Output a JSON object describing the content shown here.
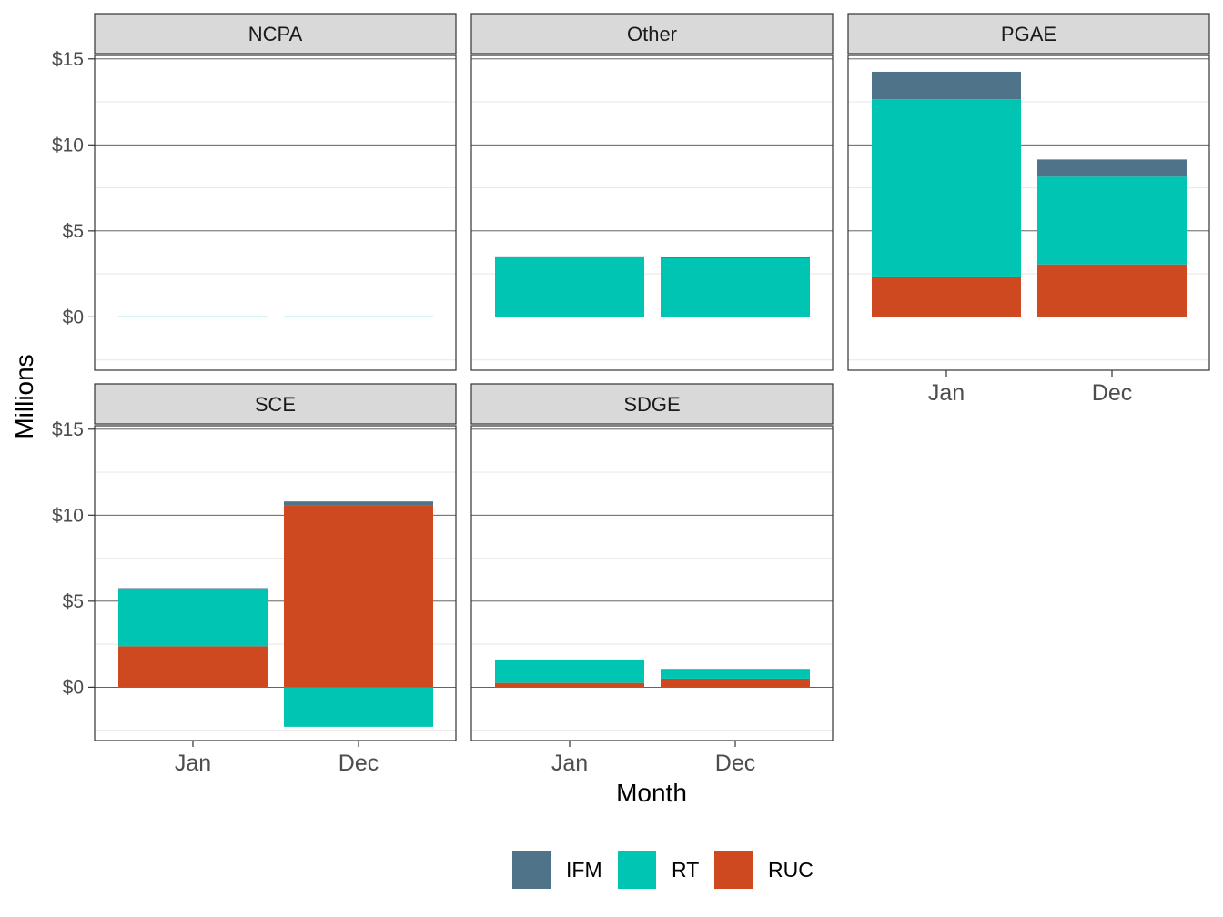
{
  "chart_data": {
    "type": "bar",
    "stacked": true,
    "xlabel": "Month",
    "ylabel": "Millions",
    "y_tick_values": [
      0,
      5,
      10,
      15
    ],
    "y_tick_labels": [
      "$0",
      "$5",
      "$10",
      "$15"
    ],
    "ylim": [
      -3.1,
      15.2
    ],
    "categories": [
      "Jan",
      "Dec"
    ],
    "legend": {
      "position": "bottom",
      "entries": [
        {
          "name": "IFM",
          "color": "#4f7489"
        },
        {
          "name": "RT",
          "color": "#00c5b3"
        },
        {
          "name": "RUC",
          "color": "#ce4820"
        }
      ]
    },
    "panels": [
      {
        "name": "NCPA",
        "show_x_axis": false,
        "series": [
          {
            "name": "IFM",
            "values": [
              0,
              0
            ]
          },
          {
            "name": "RT",
            "values": [
              0.03,
              0.03
            ]
          },
          {
            "name": "RUC",
            "values": [
              0,
              0
            ]
          }
        ]
      },
      {
        "name": "Other",
        "show_x_axis": false,
        "series": [
          {
            "name": "IFM",
            "values": [
              0.02,
              0.01
            ]
          },
          {
            "name": "RT",
            "values": [
              3.5,
              3.45
            ]
          },
          {
            "name": "RUC",
            "values": [
              0,
              0
            ]
          }
        ]
      },
      {
        "name": "PGAE",
        "show_x_axis": true,
        "series": [
          {
            "name": "IFM",
            "values": [
              1.6,
              1.0
            ]
          },
          {
            "name": "RT",
            "values": [
              10.3,
              5.1
            ]
          },
          {
            "name": "RUC",
            "values": [
              2.35,
              3.05
            ]
          }
        ]
      },
      {
        "name": "SCE",
        "show_x_axis": true,
        "series": [
          {
            "name": "IFM",
            "values": [
              0.03,
              0.25
            ]
          },
          {
            "name": "RT",
            "values": [
              3.35,
              -2.3
            ]
          },
          {
            "name": "RUC",
            "values": [
              2.38,
              10.55
            ]
          }
        ]
      },
      {
        "name": "SDGE",
        "show_x_axis": true,
        "series": [
          {
            "name": "IFM",
            "values": [
              0.01,
              0.01
            ]
          },
          {
            "name": "RT",
            "values": [
              1.35,
              0.55
            ]
          },
          {
            "name": "RUC",
            "values": [
              0.25,
              0.5
            ]
          }
        ]
      }
    ]
  }
}
